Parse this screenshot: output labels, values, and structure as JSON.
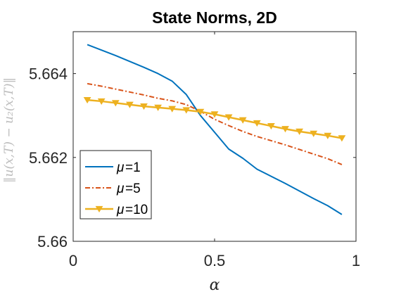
{
  "chart_data": {
    "type": "line",
    "title": "State Norms, 2D",
    "xlabel": "α",
    "ylabel": "‖u(x,T) − u₂(x,T)‖",
    "xlim": [
      0,
      1
    ],
    "ylim": [
      5.66,
      5.665
    ],
    "xticks": [
      0,
      0.5,
      1
    ],
    "xtick_labels": [
      "0",
      "0.5",
      "1"
    ],
    "yticks": [
      5.66,
      5.662,
      5.664
    ],
    "ytick_labels": [
      "5.66",
      "5.662",
      "5.664"
    ],
    "grid": false,
    "legend_position": "bottom-left",
    "series": [
      {
        "name": "μ=1",
        "legend_label": "=1",
        "color": "#0072bd",
        "line_style": "solid",
        "marker": "none",
        "x": [
          0.05,
          0.1,
          0.15,
          0.2,
          0.25,
          0.3,
          0.35,
          0.4,
          0.45,
          0.5,
          0.55,
          0.6,
          0.65,
          0.7,
          0.75,
          0.8,
          0.85,
          0.9,
          0.95
        ],
        "y": [
          5.66469,
          5.66456,
          5.66443,
          5.66429,
          5.66415,
          5.664,
          5.66382,
          5.6635,
          5.663,
          5.6626,
          5.6622,
          5.66198,
          5.66172,
          5.66155,
          5.66138,
          5.6612,
          5.66102,
          5.66085,
          5.66064
        ]
      },
      {
        "name": "μ=5",
        "legend_label": "=5",
        "color": "#d95319",
        "line_style": "dash-dot",
        "marker": "none",
        "x": [
          0.05,
          0.1,
          0.15,
          0.2,
          0.25,
          0.3,
          0.35,
          0.4,
          0.45,
          0.5,
          0.55,
          0.6,
          0.65,
          0.7,
          0.75,
          0.8,
          0.85,
          0.9,
          0.95
        ],
        "y": [
          5.66376,
          5.6637,
          5.66363,
          5.66356,
          5.66349,
          5.66341,
          5.66335,
          5.66326,
          5.6631,
          5.66291,
          5.66276,
          5.66262,
          5.6625,
          5.6624,
          5.6623,
          5.66219,
          5.66208,
          5.66197,
          5.66183
        ]
      },
      {
        "name": "μ=10",
        "legend_label": "=10",
        "color": "#edb120",
        "line_style": "solid",
        "marker": "triangle-down",
        "x": [
          0.05,
          0.1,
          0.15,
          0.2,
          0.25,
          0.3,
          0.35,
          0.4,
          0.45,
          0.5,
          0.55,
          0.6,
          0.65,
          0.7,
          0.75,
          0.8,
          0.85,
          0.9,
          0.95
        ],
        "y": [
          5.66337,
          5.66334,
          5.6633,
          5.66326,
          5.66322,
          5.66319,
          5.66316,
          5.66313,
          5.66309,
          5.66303,
          5.66296,
          5.66289,
          5.66282,
          5.66275,
          5.66268,
          5.66262,
          5.66257,
          5.66252,
          5.66246
        ]
      }
    ]
  }
}
